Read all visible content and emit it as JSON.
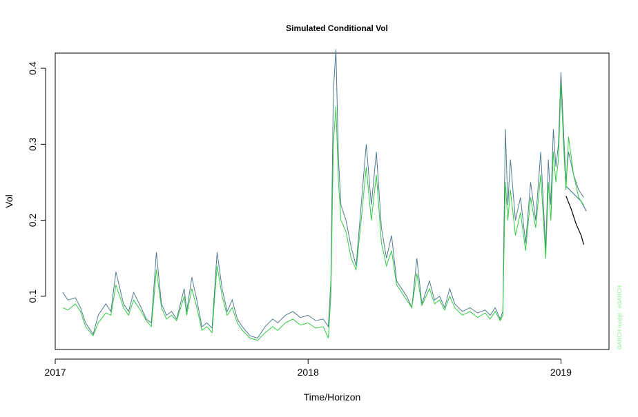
{
  "chart_data": {
    "type": "line",
    "title": "Simulated Conditional Vol",
    "xlabel": "Time/Horizon",
    "ylabel": "Vol",
    "xlim": [
      2017.0,
      2019.19
    ],
    "ylim": [
      0.03,
      0.42
    ],
    "x_ticks": [
      {
        "value": 2017,
        "label": "2017"
      },
      {
        "value": 2018,
        "label": "2018"
      },
      {
        "value": 2019,
        "label": "2019"
      }
    ],
    "y_ticks": [
      {
        "value": 0.1,
        "label": "0.1"
      },
      {
        "value": 0.2,
        "label": "0.2"
      },
      {
        "value": 0.3,
        "label": "0.3"
      },
      {
        "value": 0.4,
        "label": "0.4"
      }
    ],
    "annotation": {
      "text": "GARCH model : eGARCH",
      "color": "#90ee90"
    },
    "grid": false,
    "legend": "none",
    "series": [
      {
        "color": "#4f7a8f",
        "x": [
          2017.03,
          2017.05,
          2017.08,
          2017.1,
          2017.12,
          2017.15,
          2017.17,
          2017.2,
          2017.22,
          2017.24,
          2017.27,
          2017.29,
          2017.31,
          2017.34,
          2017.36,
          2017.38,
          2017.4,
          2017.42,
          2017.44,
          2017.46,
          2017.48,
          2017.51,
          2017.52,
          2017.54,
          2017.56,
          2017.58,
          2017.6,
          2017.62,
          2017.64,
          2017.66,
          2017.68,
          2017.7,
          2017.72,
          2017.74,
          2017.77,
          2017.8,
          2017.83,
          2017.86,
          2017.88,
          2017.91,
          2017.94,
          2017.97,
          2018.0,
          2018.03,
          2018.06,
          2018.08,
          2018.09,
          2018.1,
          2018.11,
          2018.12,
          2018.13,
          2018.15,
          2018.17,
          2018.19,
          2018.21,
          2018.23,
          2018.25,
          2018.27,
          2018.29,
          2018.31,
          2018.33,
          2018.35,
          2018.37,
          2018.39,
          2018.41,
          2018.43,
          2018.45,
          2018.48,
          2018.5,
          2018.52,
          2018.54,
          2018.56,
          2018.58,
          2018.61,
          2018.64,
          2018.67,
          2018.7,
          2018.72,
          2018.74,
          2018.76,
          2018.77,
          2018.78,
          2018.79,
          2018.8,
          2018.82,
          2018.84,
          2018.86,
          2018.88,
          2018.9,
          2018.92,
          2018.94,
          2018.95,
          2018.96,
          2018.97,
          2018.98,
          2018.99,
          2019.0,
          2019.01,
          2019.02,
          2019.03,
          2019.05,
          2019.07,
          2019.09
        ],
        "y": [
          0.105,
          0.095,
          0.098,
          0.085,
          0.065,
          0.05,
          0.075,
          0.09,
          0.08,
          0.132,
          0.09,
          0.08,
          0.105,
          0.085,
          0.07,
          0.065,
          0.158,
          0.09,
          0.075,
          0.08,
          0.07,
          0.11,
          0.08,
          0.125,
          0.095,
          0.06,
          0.065,
          0.058,
          0.158,
          0.11,
          0.08,
          0.095,
          0.07,
          0.06,
          0.048,
          0.045,
          0.06,
          0.07,
          0.065,
          0.075,
          0.08,
          0.072,
          0.075,
          0.068,
          0.07,
          0.06,
          0.12,
          0.37,
          0.425,
          0.28,
          0.22,
          0.2,
          0.165,
          0.14,
          0.22,
          0.3,
          0.22,
          0.29,
          0.19,
          0.15,
          0.18,
          0.12,
          0.11,
          0.1,
          0.085,
          0.15,
          0.09,
          0.12,
          0.095,
          0.1,
          0.085,
          0.11,
          0.09,
          0.08,
          0.085,
          0.078,
          0.082,
          0.075,
          0.085,
          0.07,
          0.08,
          0.32,
          0.22,
          0.28,
          0.2,
          0.23,
          0.17,
          0.25,
          0.2,
          0.29,
          0.16,
          0.28,
          0.22,
          0.32,
          0.27,
          0.3,
          0.395,
          0.32,
          0.25,
          0.29,
          0.26,
          0.24,
          0.23
        ],
        "forecast": {
          "x": [
            2019.02,
            2019.05,
            2019.08,
            2019.1
          ],
          "y": [
            0.245,
            0.235,
            0.225,
            0.212
          ]
        }
      },
      {
        "color": "#2ecc40",
        "x": [
          2017.03,
          2017.05,
          2017.08,
          2017.1,
          2017.12,
          2017.15,
          2017.17,
          2017.2,
          2017.22,
          2017.24,
          2017.27,
          2017.29,
          2017.31,
          2017.34,
          2017.36,
          2017.38,
          2017.4,
          2017.42,
          2017.44,
          2017.46,
          2017.48,
          2017.51,
          2017.52,
          2017.54,
          2017.56,
          2017.58,
          2017.6,
          2017.62,
          2017.64,
          2017.66,
          2017.68,
          2017.7,
          2017.72,
          2017.74,
          2017.77,
          2017.8,
          2017.83,
          2017.86,
          2017.88,
          2017.91,
          2017.94,
          2017.97,
          2018.0,
          2018.03,
          2018.06,
          2018.08,
          2018.09,
          2018.1,
          2018.11,
          2018.12,
          2018.13,
          2018.15,
          2018.17,
          2018.19,
          2018.21,
          2018.23,
          2018.25,
          2018.27,
          2018.29,
          2018.31,
          2018.33,
          2018.35,
          2018.37,
          2018.39,
          2018.41,
          2018.43,
          2018.45,
          2018.48,
          2018.5,
          2018.52,
          2018.54,
          2018.56,
          2018.58,
          2018.61,
          2018.64,
          2018.67,
          2018.7,
          2018.72,
          2018.74,
          2018.76,
          2018.77,
          2018.78,
          2018.79,
          2018.8,
          2018.82,
          2018.84,
          2018.86,
          2018.88,
          2018.9,
          2018.92,
          2018.94,
          2018.95,
          2018.96,
          2018.97,
          2018.98,
          2018.99,
          2019.0,
          2019.01,
          2019.02,
          2019.03,
          2019.05,
          2019.07,
          2019.09
        ],
        "y": [
          0.085,
          0.082,
          0.09,
          0.08,
          0.06,
          0.048,
          0.065,
          0.078,
          0.075,
          0.115,
          0.085,
          0.075,
          0.095,
          0.08,
          0.068,
          0.06,
          0.135,
          0.085,
          0.07,
          0.075,
          0.068,
          0.1,
          0.075,
          0.11,
          0.085,
          0.055,
          0.06,
          0.052,
          0.14,
          0.1,
          0.075,
          0.085,
          0.065,
          0.055,
          0.045,
          0.042,
          0.052,
          0.06,
          0.055,
          0.065,
          0.07,
          0.062,
          0.065,
          0.058,
          0.06,
          0.045,
          0.1,
          0.3,
          0.35,
          0.25,
          0.2,
          0.185,
          0.15,
          0.135,
          0.2,
          0.27,
          0.2,
          0.26,
          0.17,
          0.14,
          0.16,
          0.115,
          0.105,
          0.095,
          0.085,
          0.13,
          0.088,
          0.11,
          0.09,
          0.095,
          0.082,
          0.1,
          0.085,
          0.075,
          0.08,
          0.072,
          0.078,
          0.07,
          0.08,
          0.068,
          0.075,
          0.25,
          0.2,
          0.24,
          0.18,
          0.21,
          0.16,
          0.23,
          0.19,
          0.26,
          0.15,
          0.25,
          0.2,
          0.29,
          0.25,
          0.28,
          0.38,
          0.3,
          0.24,
          0.31,
          0.26,
          0.23,
          0.22
        ],
        "forecast": {
          "x": [
            2019.02,
            2019.04,
            2019.06,
            2019.08,
            2019.09
          ],
          "y": [
            0.232,
            0.215,
            0.195,
            0.18,
            0.168
          ],
          "color": "#000000"
        }
      }
    ]
  }
}
